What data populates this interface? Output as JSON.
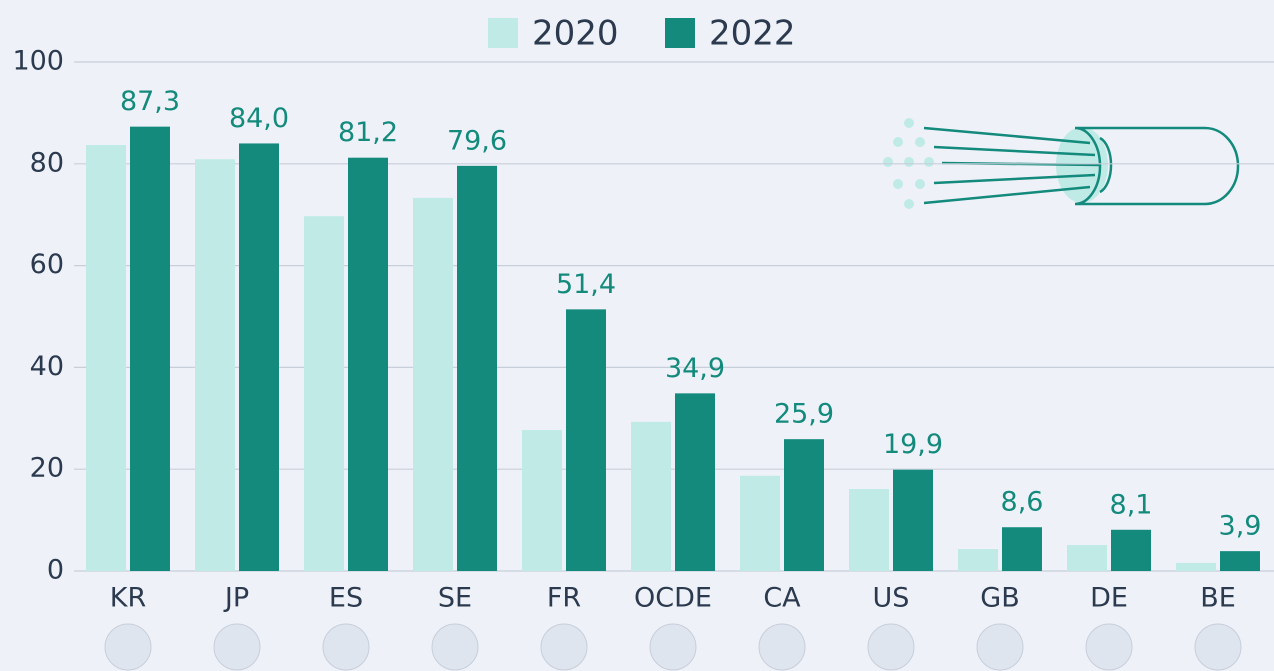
{
  "chart_data": {
    "type": "bar",
    "categories": [
      "KR",
      "JP",
      "ES",
      "SE",
      "FR",
      "OCDE",
      "CA",
      "US",
      "GB",
      "DE",
      "BE"
    ],
    "series": [
      {
        "name": "2020",
        "color": "#bfeae6",
        "values": [
          83.7,
          80.9,
          69.7,
          73.3,
          27.7,
          29.3,
          18.7,
          16.1,
          4.3,
          5.1,
          1.6
        ]
      },
      {
        "name": "2022",
        "color": "#138a7c",
        "values": [
          87.3,
          84.0,
          81.2,
          79.6,
          51.4,
          34.9,
          25.9,
          19.9,
          8.6,
          8.1,
          3.9
        ],
        "value_labels": [
          "87,3",
          "84,0",
          "81,2",
          "79,6",
          "51,4",
          "34,9",
          "25,9",
          "19,9",
          "8,6",
          "8,1",
          "3,9"
        ]
      }
    ],
    "ylim": [
      0,
      100
    ],
    "yticks": [
      0,
      20,
      40,
      60,
      80,
      100
    ],
    "grid": true,
    "legend": "top"
  }
}
